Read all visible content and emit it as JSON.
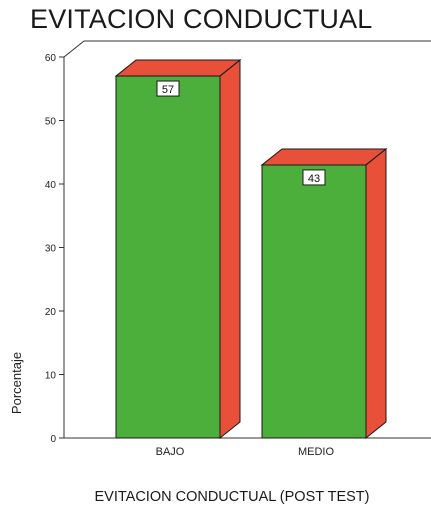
{
  "chart_data": {
    "type": "bar",
    "title": "EVITACION CONDUCTUAL",
    "xlabel": "EVITACION CONDUCTUAL (POST TEST)",
    "ylabel": "Porcentaje",
    "categories": [
      "BAJO",
      "MEDIO"
    ],
    "values": [
      57,
      43
    ],
    "data_labels": [
      "57",
      "43"
    ],
    "ylim": [
      0,
      60
    ],
    "yticks": [
      0,
      10,
      20,
      30,
      40,
      50,
      60
    ],
    "grid": false,
    "legend": "none",
    "style": "3d",
    "colors": {
      "bar_front": "#4caf3c",
      "bar_side": "#e8503a",
      "bar_top": "#e8503a",
      "bar_edge": "#1a1a1a",
      "axis": "#333333",
      "label_box_fill": "#ffffff"
    }
  }
}
